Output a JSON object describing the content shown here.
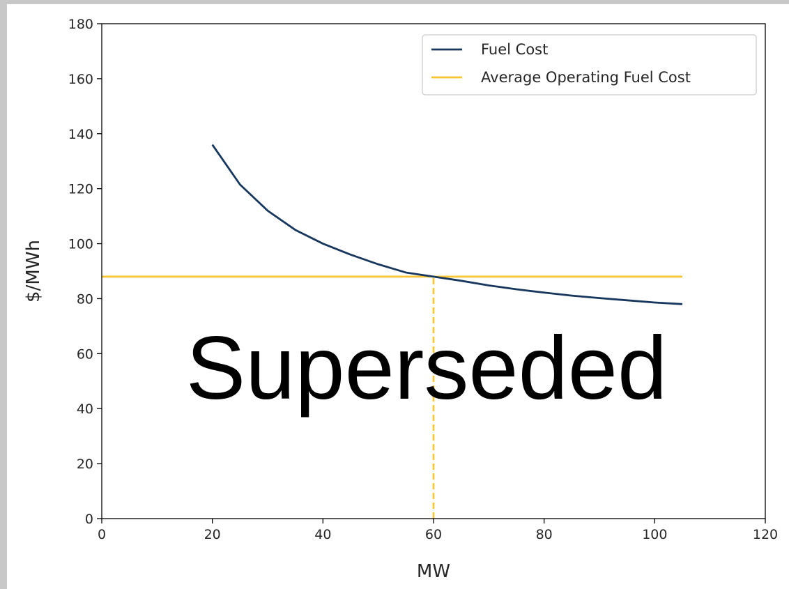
{
  "chart_data": {
    "type": "line",
    "xlabel": "MW",
    "ylabel": "$/MWh",
    "xlim": [
      0,
      120
    ],
    "ylim": [
      0,
      180
    ],
    "xticks": [
      "0",
      "20",
      "40",
      "60",
      "80",
      "100",
      "120"
    ],
    "yticks": [
      "0",
      "20",
      "40",
      "60",
      "80",
      "100",
      "120",
      "140",
      "160",
      "180"
    ],
    "grid": false,
    "legend_position": "top-right",
    "series": [
      {
        "name": "Fuel Cost",
        "color": "#17375e",
        "style": "solid",
        "x": [
          20,
          25,
          30,
          35,
          40,
          45,
          50,
          55,
          60,
          65,
          70,
          75,
          80,
          85,
          90,
          95,
          100,
          105
        ],
        "y": [
          136,
          121.5,
          112,
          105,
          100,
          96,
          92.5,
          89.5,
          88,
          86.5,
          84.8,
          83.4,
          82.2,
          81.1,
          80.2,
          79.4,
          78.6,
          78
        ]
      },
      {
        "name": "Average Operating Fuel Cost",
        "color": "#fbc531",
        "style": "solid",
        "x": [
          0,
          105
        ],
        "y": [
          88,
          88
        ]
      }
    ],
    "annotations": [
      {
        "kind": "vertical-dashed",
        "x": 60,
        "y_from": 0,
        "y_to": 88,
        "color": "#fbc531"
      }
    ]
  },
  "watermark": "Superseded"
}
